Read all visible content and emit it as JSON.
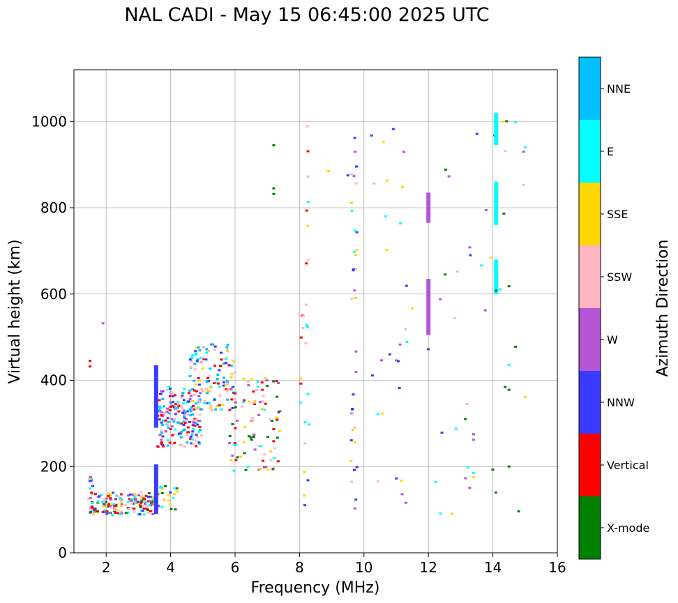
{
  "title": "NAL CADI - May 15 06:45:00 2025 UTC",
  "chart_data": {
    "type": "scatter",
    "title": "NAL CADI - May 15 06:45:00 2025 UTC",
    "xlabel": "Frequency (MHz)",
    "ylabel": "Virtual height (km)",
    "xlim": [
      1,
      16
    ],
    "ylim": [
      0,
      1120
    ],
    "xticks": [
      2,
      4,
      6,
      8,
      10,
      12,
      14,
      16
    ],
    "yticks": [
      0,
      200,
      400,
      600,
      800,
      1000
    ],
    "grid": true,
    "colorbar": {
      "label": "Azimuth Direction",
      "categories": [
        {
          "name": "X-mode",
          "color": "#008000"
        },
        {
          "name": "Vertical",
          "color": "#ff0000"
        },
        {
          "name": "NNW",
          "color": "#3a3aff"
        },
        {
          "name": "W",
          "color": "#b455d6"
        },
        {
          "name": "SSW",
          "color": "#ffb6c1"
        },
        {
          "name": "SSE",
          "color": "#ffd700"
        },
        {
          "name": "E",
          "color": "#00ffff"
        },
        {
          "name": "NNE",
          "color": "#00bfff"
        }
      ]
    },
    "columns": [
      {
        "f": 3.55,
        "h0": 90,
        "h1": 205,
        "c": "NNW"
      },
      {
        "f": 3.55,
        "h0": 290,
        "h1": 435,
        "c": "NNW"
      },
      {
        "f": 12.0,
        "h0": 505,
        "h1": 635,
        "c": "W"
      },
      {
        "f": 12.0,
        "h0": 765,
        "h1": 835,
        "c": "W"
      },
      {
        "f": 14.1,
        "h0": 760,
        "h1": 860,
        "c": "E"
      },
      {
        "f": 14.1,
        "h0": 600,
        "h1": 680,
        "c": "E"
      },
      {
        "f": 14.1,
        "h0": 945,
        "h1": 1020,
        "c": "E"
      }
    ],
    "clusters": [
      {
        "f0": 1.5,
        "f1": 3.5,
        "h0": 88,
        "h1": 140,
        "n": 170,
        "cats": [
          "Vertical",
          "NNW",
          "W",
          "SSW",
          "E",
          "SSE",
          "X-mode"
        ]
      },
      {
        "f0": 1.45,
        "f1": 1.6,
        "h0": 95,
        "h1": 185,
        "n": 14,
        "cats": [
          "E",
          "SSW",
          "Vertical",
          "NNW"
        ]
      },
      {
        "f0": 3.5,
        "f1": 4.2,
        "h0": 100,
        "h1": 155,
        "n": 22,
        "cats": [
          "NNW",
          "SSE",
          "E",
          "X-mode"
        ]
      },
      {
        "f0": 3.6,
        "f1": 5.0,
        "h0": 245,
        "h1": 385,
        "n": 190,
        "cats": [
          "Vertical",
          "NNW",
          "W",
          "SSW",
          "E",
          "NNE"
        ]
      },
      {
        "f0": 4.6,
        "f1": 6.0,
        "h0": 330,
        "h1": 485,
        "n": 120,
        "cats": [
          "E",
          "NNE",
          "NNW",
          "Vertical",
          "SSW",
          "SSE"
        ]
      },
      {
        "f0": 5.8,
        "f1": 7.4,
        "h0": 190,
        "h1": 410,
        "n": 95,
        "cats": [
          "X-mode",
          "Vertical",
          "W",
          "SSW",
          "SSE",
          "E"
        ]
      },
      {
        "f0": 8.0,
        "f1": 8.3,
        "h0": 95,
        "h1": 1000,
        "n": 28,
        "cats": [
          "SSE",
          "SSW",
          "E",
          "NNW",
          "Vertical"
        ]
      },
      {
        "f0": 9.6,
        "f1": 9.8,
        "h0": 90,
        "h1": 1015,
        "n": 36,
        "cats": [
          "NNW",
          "E",
          "SSE",
          "W",
          "SSW"
        ]
      },
      {
        "f0": 10.2,
        "f1": 11.5,
        "h0": 88,
        "h1": 990,
        "n": 26,
        "cats": [
          "SSE",
          "SSW",
          "W",
          "NNW",
          "E"
        ]
      },
      {
        "f0": 12.2,
        "f1": 15.1,
        "h0": 88,
        "h1": 1015,
        "n": 32,
        "cats": [
          "SSE",
          "E",
          "NNW",
          "SSW",
          "X-mode",
          "W"
        ]
      }
    ],
    "points": [
      {
        "f": 1.9,
        "h": 532,
        "c": "W"
      },
      {
        "f": 1.5,
        "h": 445,
        "c": "Vertical"
      },
      {
        "f": 1.5,
        "h": 432,
        "c": "Vertical"
      },
      {
        "f": 7.2,
        "h": 945,
        "c": "X-mode"
      },
      {
        "f": 7.2,
        "h": 845,
        "c": "X-mode"
      },
      {
        "f": 7.2,
        "h": 832,
        "c": "X-mode"
      },
      {
        "f": 8.9,
        "h": 885,
        "c": "SSE"
      },
      {
        "f": 9.5,
        "h": 875,
        "c": "NNW"
      },
      {
        "f": 12.0,
        "h": 472,
        "c": "NNW"
      },
      {
        "f": 14.1,
        "h": 608,
        "c": "X-mode"
      },
      {
        "f": 14.5,
        "h": 618,
        "c": "X-mode"
      },
      {
        "f": 14.5,
        "h": 378,
        "c": "X-mode"
      },
      {
        "f": 14.5,
        "h": 200,
        "c": "X-mode"
      },
      {
        "f": 14.5,
        "h": 436,
        "c": "E"
      },
      {
        "f": 14.8,
        "h": 96,
        "c": "X-mode"
      },
      {
        "f": 15.0,
        "h": 940,
        "c": "E"
      },
      {
        "f": 14.7,
        "h": 998,
        "c": "E"
      },
      {
        "f": 15.0,
        "h": 362,
        "c": "SSE"
      },
      {
        "f": 13.3,
        "h": 690,
        "c": "NNW"
      },
      {
        "f": 12.9,
        "h": 652,
        "c": "SSW"
      },
      {
        "f": 13.4,
        "h": 185,
        "c": "E"
      },
      {
        "f": 13.4,
        "h": 175,
        "c": "SSE"
      },
      {
        "f": 13.4,
        "h": 262,
        "c": "W"
      },
      {
        "f": 13.4,
        "h": 275,
        "c": "W"
      },
      {
        "f": 13.2,
        "h": 345,
        "c": "SSW"
      },
      {
        "f": 11.1,
        "h": 382,
        "c": "NNW"
      },
      {
        "f": 11.3,
        "h": 116,
        "c": "W"
      }
    ]
  }
}
